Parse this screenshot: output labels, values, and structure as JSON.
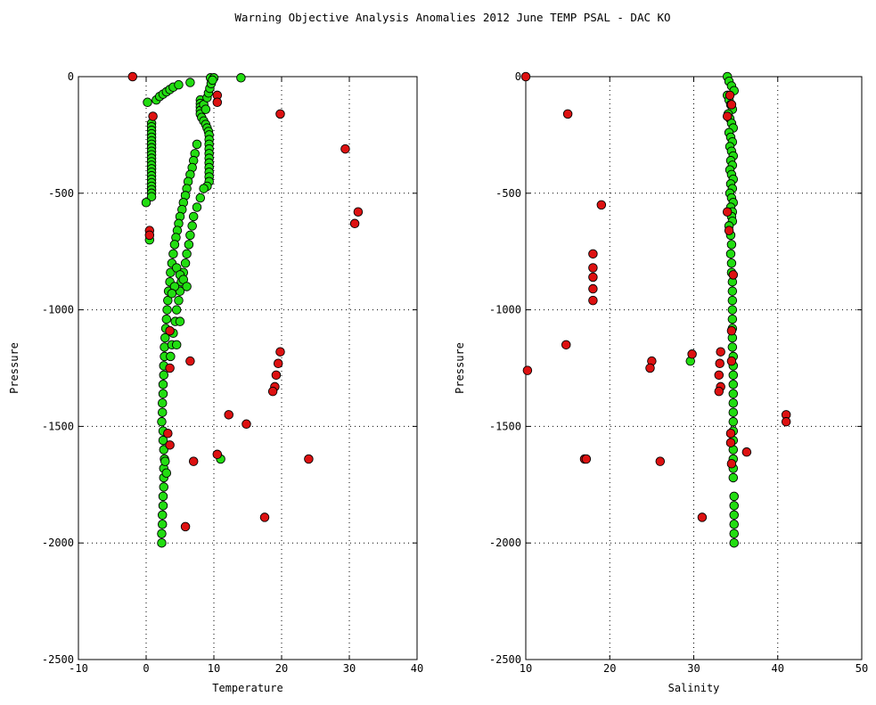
{
  "figure": {
    "title": "Warning Objective Analysis Anomalies 2012 June TEMP PSAL - DAC KO"
  },
  "colors": {
    "good": "#22dd11",
    "bad": "#dd1111",
    "edge": "#000000"
  },
  "chart_data": [
    {
      "type": "scatter",
      "xlabel": "Temperature",
      "ylabel": "Pressure",
      "xlim": [
        -10,
        40
      ],
      "ylim": [
        -2500,
        0
      ],
      "xticks": [
        "-10",
        "0",
        "10",
        "20",
        "30",
        "40"
      ],
      "yticks": [
        "0",
        "-500",
        "-1000",
        "-1500",
        "-2000",
        "-2500"
      ],
      "grid": true,
      "series": [
        {
          "status": "good",
          "points": [
            [
              0.2,
              -110
            ],
            [
              1.5,
              -100
            ],
            [
              2.0,
              -85
            ],
            [
              2.5,
              -75
            ],
            [
              3.0,
              -65
            ],
            [
              3.5,
              -55
            ],
            [
              4.0,
              -45
            ],
            [
              4.8,
              -35
            ],
            [
              6.5,
              -25
            ],
            [
              9.5,
              -5
            ],
            [
              10.0,
              -5
            ],
            [
              14.0,
              -5
            ],
            [
              0.8,
              -200
            ],
            [
              0.8,
              -215
            ],
            [
              0.8,
              -230
            ],
            [
              0.8,
              -245
            ],
            [
              0.8,
              -260
            ],
            [
              0.8,
              -275
            ],
            [
              0.8,
              -290
            ],
            [
              0.8,
              -305
            ],
            [
              0.8,
              -320
            ],
            [
              0.8,
              -335
            ],
            [
              0.8,
              -350
            ],
            [
              0.8,
              -365
            ],
            [
              0.8,
              -380
            ],
            [
              0.8,
              -395
            ],
            [
              0.8,
              -410
            ],
            [
              0.8,
              -425
            ],
            [
              0.8,
              -440
            ],
            [
              0.8,
              -455
            ],
            [
              0.8,
              -470
            ],
            [
              0.8,
              -485
            ],
            [
              0.8,
              -500
            ],
            [
              0.8,
              -515
            ],
            [
              0.0,
              -540
            ],
            [
              0.5,
              -700
            ],
            [
              8.0,
              -100
            ],
            [
              8.0,
              -115
            ],
            [
              8.0,
              -130
            ],
            [
              8.0,
              -145
            ],
            [
              8.0,
              -160
            ],
            [
              8.2,
              -175
            ],
            [
              8.5,
              -190
            ],
            [
              8.8,
              -205
            ],
            [
              9.0,
              -220
            ],
            [
              9.2,
              -235
            ],
            [
              9.3,
              -250
            ],
            [
              9.3,
              -270
            ],
            [
              9.3,
              -290
            ],
            [
              9.3,
              -310
            ],
            [
              9.3,
              -330
            ],
            [
              9.3,
              -350
            ],
            [
              9.3,
              -370
            ],
            [
              9.3,
              -390
            ],
            [
              9.3,
              -410
            ],
            [
              9.3,
              -430
            ],
            [
              9.3,
              -450
            ],
            [
              9.0,
              -470
            ],
            [
              8.5,
              -120
            ],
            [
              8.8,
              -140
            ],
            [
              9.0,
              -90
            ],
            [
              9.2,
              -70
            ],
            [
              9.4,
              -50
            ],
            [
              9.6,
              -30
            ],
            [
              9.8,
              -15
            ],
            [
              7.5,
              -290
            ],
            [
              7.2,
              -330
            ],
            [
              7.0,
              -360
            ],
            [
              6.8,
              -390
            ],
            [
              6.5,
              -420
            ],
            [
              6.2,
              -450
            ],
            [
              6.0,
              -480
            ],
            [
              5.8,
              -510
            ],
            [
              5.5,
              -540
            ],
            [
              5.3,
              -570
            ],
            [
              5.0,
              -600
            ],
            [
              4.8,
              -630
            ],
            [
              4.6,
              -660
            ],
            [
              4.4,
              -690
            ],
            [
              4.2,
              -720
            ],
            [
              4.0,
              -760
            ],
            [
              3.8,
              -800
            ],
            [
              3.6,
              -840
            ],
            [
              3.5,
              -880
            ],
            [
              3.3,
              -920
            ],
            [
              3.2,
              -960
            ],
            [
              3.1,
              -1000
            ],
            [
              3.0,
              -1040
            ],
            [
              2.9,
              -1080
            ],
            [
              2.8,
              -1120
            ],
            [
              2.7,
              -1160
            ],
            [
              2.7,
              -1200
            ],
            [
              2.6,
              -1240
            ],
            [
              2.6,
              -1280
            ],
            [
              2.5,
              -1320
            ],
            [
              2.5,
              -1360
            ],
            [
              2.4,
              -1400
            ],
            [
              2.4,
              -1440
            ],
            [
              2.3,
              -1480
            ],
            [
              8.5,
              -480
            ],
            [
              8.0,
              -520
            ],
            [
              7.5,
              -560
            ],
            [
              7.0,
              -600
            ],
            [
              6.8,
              -640
            ],
            [
              6.5,
              -680
            ],
            [
              6.3,
              -720
            ],
            [
              6.0,
              -760
            ],
            [
              5.8,
              -800
            ],
            [
              5.5,
              -840
            ],
            [
              5.2,
              -880
            ],
            [
              5.0,
              -920
            ],
            [
              4.8,
              -960
            ],
            [
              4.5,
              -1000
            ],
            [
              4.3,
              -1050
            ],
            [
              4.0,
              -1100
            ],
            [
              3.8,
              -1150
            ],
            [
              3.6,
              -1200
            ],
            [
              4.5,
              -820
            ],
            [
              5.0,
              -850
            ],
            [
              5.5,
              -870
            ],
            [
              6.0,
              -900
            ],
            [
              4.2,
              -900
            ],
            [
              3.8,
              -930
            ],
            [
              2.5,
              -1520
            ],
            [
              2.5,
              -1560
            ],
            [
              2.6,
              -1600
            ],
            [
              2.7,
              -1640
            ],
            [
              2.6,
              -1680
            ],
            [
              2.6,
              -1720
            ],
            [
              2.6,
              -1760
            ],
            [
              2.5,
              -1800
            ],
            [
              2.5,
              -1840
            ],
            [
              2.4,
              -1880
            ],
            [
              2.4,
              -1920
            ],
            [
              2.3,
              -1960
            ],
            [
              2.3,
              -2000
            ],
            [
              2.8,
              -1650
            ],
            [
              3.0,
              -1700
            ],
            [
              11.0,
              -1640
            ],
            [
              4.5,
              -1150
            ],
            [
              5.0,
              -1050
            ]
          ]
        },
        {
          "status": "bad",
          "points": [
            [
              -2.0,
              0
            ],
            [
              1.0,
              -170
            ],
            [
              0.5,
              -660
            ],
            [
              0.5,
              -680
            ],
            [
              10.5,
              -80
            ],
            [
              10.5,
              -110
            ],
            [
              19.8,
              -160
            ],
            [
              29.4,
              -310
            ],
            [
              31.3,
              -580
            ],
            [
              30.8,
              -630
            ],
            [
              3.5,
              -1090
            ],
            [
              3.5,
              -1250
            ],
            [
              6.5,
              -1220
            ],
            [
              19.8,
              -1180
            ],
            [
              19.5,
              -1230
            ],
            [
              19.2,
              -1280
            ],
            [
              19.0,
              -1330
            ],
            [
              18.7,
              -1350
            ],
            [
              12.2,
              -1450
            ],
            [
              14.8,
              -1490
            ],
            [
              3.2,
              -1530
            ],
            [
              3.5,
              -1580
            ],
            [
              10.5,
              -1620
            ],
            [
              7.0,
              -1650
            ],
            [
              24.0,
              -1640
            ],
            [
              17.5,
              -1890
            ],
            [
              5.8,
              -1930
            ]
          ]
        }
      ]
    },
    {
      "type": "scatter",
      "xlabel": "Salinity",
      "ylabel": "Pressure",
      "xlim": [
        10,
        50
      ],
      "ylim": [
        -2500,
        0
      ],
      "xticks": [
        "10",
        "20",
        "30",
        "40",
        "50"
      ],
      "yticks": [
        "0",
        "-500",
        "-1000",
        "-1500",
        "-2000",
        "-2500"
      ],
      "grid": true,
      "series": [
        {
          "status": "good",
          "points": [
            [
              34.0,
              0
            ],
            [
              34.2,
              -20
            ],
            [
              34.5,
              -40
            ],
            [
              34.8,
              -60
            ],
            [
              34.0,
              -80
            ],
            [
              34.2,
              -100
            ],
            [
              34.4,
              -120
            ],
            [
              34.6,
              -140
            ],
            [
              34.1,
              -160
            ],
            [
              34.3,
              -180
            ],
            [
              34.5,
              -200
            ],
            [
              34.7,
              -220
            ],
            [
              34.2,
              -240
            ],
            [
              34.4,
              -260
            ],
            [
              34.6,
              -280
            ],
            [
              34.3,
              -300
            ],
            [
              34.5,
              -320
            ],
            [
              34.7,
              -340
            ],
            [
              34.4,
              -360
            ],
            [
              34.6,
              -380
            ],
            [
              34.3,
              -400
            ],
            [
              34.5,
              -420
            ],
            [
              34.7,
              -440
            ],
            [
              34.4,
              -460
            ],
            [
              34.6,
              -480
            ],
            [
              34.3,
              -500
            ],
            [
              34.5,
              -520
            ],
            [
              34.7,
              -540
            ],
            [
              34.4,
              -560
            ],
            [
              34.6,
              -580
            ],
            [
              34.5,
              -600
            ],
            [
              34.6,
              -620
            ],
            [
              34.2,
              -640
            ],
            [
              34.4,
              -680
            ],
            [
              34.5,
              -720
            ],
            [
              34.4,
              -760
            ],
            [
              34.5,
              -800
            ],
            [
              34.5,
              -840
            ],
            [
              34.6,
              -880
            ],
            [
              34.6,
              -920
            ],
            [
              34.6,
              -960
            ],
            [
              34.6,
              -1000
            ],
            [
              34.6,
              -1040
            ],
            [
              34.6,
              -1080
            ],
            [
              34.6,
              -1120
            ],
            [
              34.6,
              -1160
            ],
            [
              34.7,
              -1200
            ],
            [
              34.7,
              -1240
            ],
            [
              34.7,
              -1280
            ],
            [
              34.7,
              -1320
            ],
            [
              34.7,
              -1360
            ],
            [
              34.7,
              -1400
            ],
            [
              34.7,
              -1440
            ],
            [
              34.7,
              -1480
            ],
            [
              34.7,
              -1520
            ],
            [
              34.7,
              -1560
            ],
            [
              34.7,
              -1600
            ],
            [
              34.7,
              -1640
            ],
            [
              34.7,
              -1680
            ],
            [
              34.7,
              -1720
            ],
            [
              34.8,
              -1800
            ],
            [
              34.8,
              -1840
            ],
            [
              34.8,
              -1880
            ],
            [
              34.8,
              -1920
            ],
            [
              34.8,
              -1960
            ],
            [
              34.8,
              -2000
            ],
            [
              29.6,
              -1220
            ]
          ]
        },
        {
          "status": "bad",
          "points": [
            [
              10.0,
              0
            ],
            [
              15.0,
              -160
            ],
            [
              19.0,
              -550
            ],
            [
              18.0,
              -760
            ],
            [
              18.0,
              -820
            ],
            [
              18.0,
              -860
            ],
            [
              18.0,
              -910
            ],
            [
              18.0,
              -960
            ],
            [
              34.3,
              -80
            ],
            [
              34.5,
              -120
            ],
            [
              34.0,
              -170
            ],
            [
              34.0,
              -580
            ],
            [
              34.2,
              -660
            ],
            [
              34.7,
              -850
            ],
            [
              14.8,
              -1150
            ],
            [
              10.2,
              -1260
            ],
            [
              25.0,
              -1220
            ],
            [
              24.8,
              -1250
            ],
            [
              29.8,
              -1190
            ],
            [
              33.2,
              -1180
            ],
            [
              33.1,
              -1230
            ],
            [
              33.0,
              -1280
            ],
            [
              33.2,
              -1330
            ],
            [
              33.0,
              -1350
            ],
            [
              34.5,
              -1090
            ],
            [
              34.5,
              -1220
            ],
            [
              34.4,
              -1530
            ],
            [
              34.4,
              -1570
            ],
            [
              34.5,
              -1660
            ],
            [
              41.0,
              -1450
            ],
            [
              41.0,
              -1480
            ],
            [
              36.3,
              -1610
            ],
            [
              17.0,
              -1640
            ],
            [
              17.2,
              -1640
            ],
            [
              26.0,
              -1650
            ],
            [
              31.0,
              -1890
            ]
          ]
        }
      ]
    }
  ]
}
